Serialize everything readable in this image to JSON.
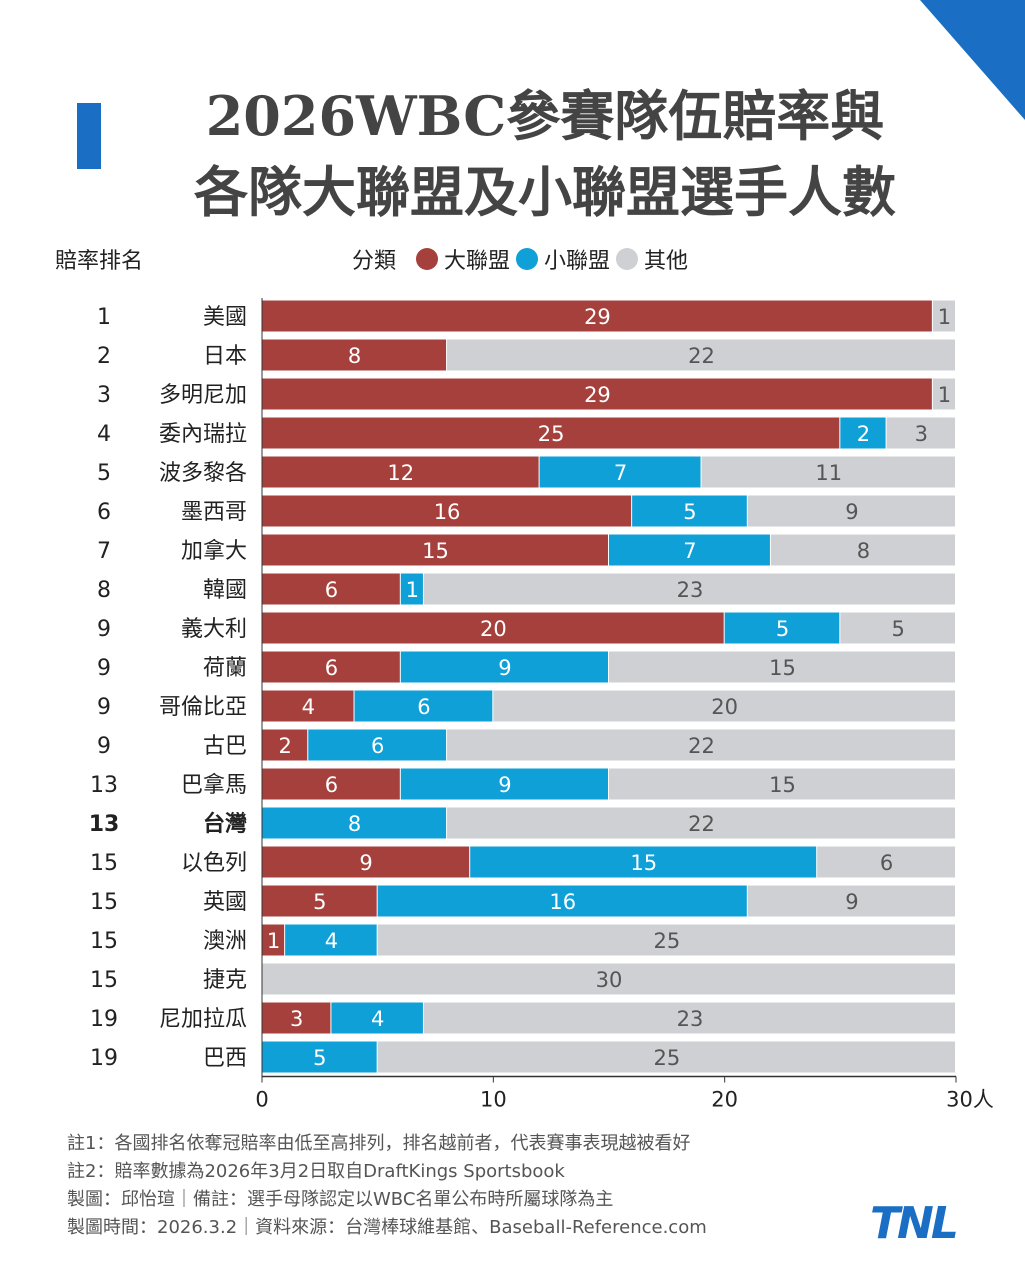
{
  "header": {
    "title_line1": "2026WBC參賽隊伍賠率與",
    "title_line2": "各隊大聯盟及小聯盟選手人數",
    "rank_header": "賠率排名",
    "legend_label": "分類"
  },
  "chart_data": {
    "type": "bar",
    "orientation": "horizontal",
    "stacked": true,
    "xlim": [
      0,
      30
    ],
    "xticks": [
      "0",
      "10",
      "20",
      "30人"
    ],
    "series": [
      {
        "name": "大聯盟",
        "color": "#a5403c"
      },
      {
        "name": "小聯盟",
        "color": "#0fa0d8"
      },
      {
        "name": "其他",
        "color": "#cfd0d4"
      }
    ],
    "rows": [
      {
        "rank": "1",
        "team": "美國",
        "values": [
          29,
          0,
          1
        ]
      },
      {
        "rank": "2",
        "team": "日本",
        "values": [
          8,
          0,
          22
        ]
      },
      {
        "rank": "3",
        "team": "多明尼加",
        "values": [
          29,
          0,
          1
        ]
      },
      {
        "rank": "4",
        "team": "委內瑞拉",
        "values": [
          25,
          2,
          3
        ]
      },
      {
        "rank": "5",
        "team": "波多黎各",
        "values": [
          12,
          7,
          11
        ]
      },
      {
        "rank": "6",
        "team": "墨西哥",
        "values": [
          16,
          5,
          9
        ]
      },
      {
        "rank": "7",
        "team": "加拿大",
        "values": [
          15,
          7,
          8
        ]
      },
      {
        "rank": "8",
        "team": "韓國",
        "values": [
          6,
          1,
          23
        ]
      },
      {
        "rank": "9",
        "team": "義大利",
        "values": [
          20,
          5,
          5
        ]
      },
      {
        "rank": "9",
        "team": "荷蘭",
        "values": [
          6,
          9,
          15
        ]
      },
      {
        "rank": "9",
        "team": "哥倫比亞",
        "values": [
          4,
          6,
          20
        ]
      },
      {
        "rank": "9",
        "team": "古巴",
        "values": [
          2,
          6,
          22
        ]
      },
      {
        "rank": "13",
        "team": "巴拿馬",
        "values": [
          6,
          9,
          15
        ]
      },
      {
        "rank": "13",
        "team": "台灣",
        "values": [
          0,
          8,
          22
        ],
        "highlight": true
      },
      {
        "rank": "15",
        "team": "以色列",
        "values": [
          9,
          15,
          6
        ]
      },
      {
        "rank": "15",
        "team": "英國",
        "values": [
          5,
          16,
          9
        ]
      },
      {
        "rank": "15",
        "team": "澳洲",
        "values": [
          1,
          4,
          25
        ]
      },
      {
        "rank": "15",
        "team": "捷克",
        "values": [
          0,
          0,
          30
        ]
      },
      {
        "rank": "19",
        "team": "尼加拉瓜",
        "values": [
          3,
          4,
          23
        ]
      },
      {
        "rank": "19",
        "team": "巴西",
        "values": [
          0,
          5,
          25
        ]
      }
    ]
  },
  "notes": [
    "註1：各國排名依奪冠賠率由低至高排列，排名越前者，代表賽事表現越被看好",
    "註2：賠率數據為2026年3月2日取自DraftKings Sportsbook",
    "製圖：邱怡瑄｜備註：選手母隊認定以WBC名單公布時所屬球隊為主",
    "製圖時間：2026.3.2｜資料來源：台灣棒球維基館、Baseball-Reference.com"
  ],
  "logo_text": "TNL"
}
